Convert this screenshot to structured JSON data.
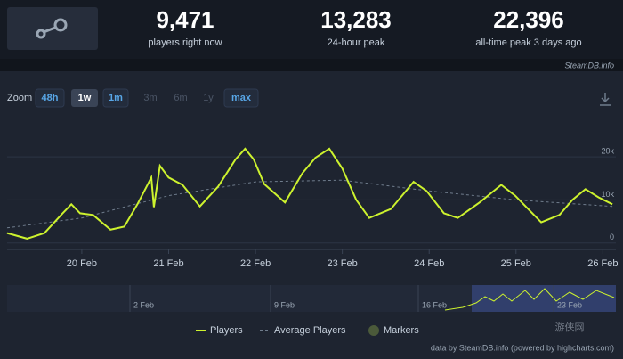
{
  "header": {
    "brand": "SteamDB.info",
    "stats": [
      {
        "value": "9,471",
        "label": "players right now"
      },
      {
        "value": "13,283",
        "label": "24-hour peak"
      },
      {
        "value": "22,396",
        "label": "all-time peak 3 days ago"
      }
    ]
  },
  "zoom": {
    "label": "Zoom",
    "buttons": [
      "48h",
      "1w",
      "1m",
      "3m",
      "6m",
      "1y",
      "max"
    ],
    "active": "1w"
  },
  "navigator": {
    "labels": [
      "2 Feb",
      "9 Feb",
      "16 Feb",
      "23 Feb"
    ]
  },
  "footer": "data by SteamDB.info (powered by highcharts.com)",
  "watermark": "游侠网",
  "chart_data": {
    "type": "line",
    "xlim": [
      19.14,
      26.15
    ],
    "xticks": [
      {
        "value": 20,
        "label": "20 Feb"
      },
      {
        "value": 21,
        "label": "21 Feb"
      },
      {
        "value": 22,
        "label": "22 Feb"
      },
      {
        "value": 23,
        "label": "23 Feb"
      },
      {
        "value": 24,
        "label": "24 Feb"
      },
      {
        "value": 25,
        "label": "25 Feb"
      },
      {
        "value": 26,
        "label": "26 Feb"
      }
    ],
    "ylim": [
      -1500,
      28500
    ],
    "yticks": [
      0,
      {
        "value": 10000,
        "label": "10k"
      },
      {
        "value": 20000,
        "label": "20k"
      }
    ],
    "grid": true,
    "legend_extra": "Markers",
    "series": [
      {
        "name": "Players",
        "color": "#cdf22e",
        "style": "solid",
        "x": [
          19.14,
          19.37,
          19.57,
          19.78,
          19.88,
          19.98,
          20.13,
          20.33,
          20.49,
          20.64,
          20.8,
          20.83,
          20.9,
          21.0,
          21.16,
          21.36,
          21.57,
          21.77,
          21.88,
          21.98,
          22.1,
          22.34,
          22.54,
          22.69,
          22.85,
          23.0,
          23.16,
          23.31,
          23.56,
          23.82,
          23.97,
          24.17,
          24.33,
          24.58,
          24.83,
          24.99,
          25.14,
          25.29,
          25.5,
          25.65,
          25.8,
          25.95,
          26.11
        ],
        "values": [
          2300,
          1000,
          2300,
          6900,
          9000,
          6900,
          6500,
          3100,
          3800,
          9000,
          15200,
          8300,
          17900,
          15200,
          13500,
          8500,
          13100,
          19400,
          21900,
          19400,
          13700,
          9400,
          16200,
          19800,
          21900,
          17300,
          10000,
          5800,
          7900,
          14200,
          12100,
          6900,
          5800,
          9400,
          13500,
          11000,
          7900,
          4800,
          6500,
          10000,
          12500,
          10600,
          9000
        ]
      },
      {
        "name": "Average Players",
        "color": "#6f7c8c",
        "style": "dashed",
        "x": [
          19.14,
          20.0,
          21.0,
          22.0,
          23.0,
          24.0,
          25.0,
          26.11
        ],
        "values": [
          3500,
          5800,
          11000,
          14200,
          14600,
          12100,
          10000,
          8500
        ]
      }
    ]
  }
}
